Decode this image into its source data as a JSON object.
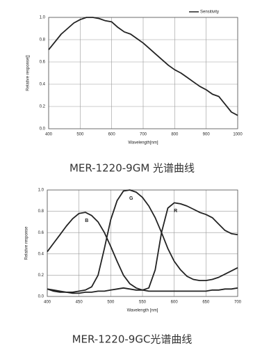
{
  "chart_data": [
    {
      "type": "line",
      "caption": "MER-1220-9GM 光谱曲线",
      "x_label": "Wavelength[nm]",
      "y_label": "Relative response[]",
      "x": [
        400,
        420,
        440,
        460,
        480,
        500,
        520,
        540,
        560,
        580,
        600,
        620,
        640,
        660,
        680,
        700,
        720,
        740,
        760,
        780,
        800,
        820,
        840,
        860,
        880,
        900,
        920,
        940,
        960,
        980,
        1000
      ],
      "series": [
        {
          "name": "Sensitivity",
          "color": "#222222",
          "values": [
            0.71,
            0.78,
            0.85,
            0.9,
            0.95,
            0.98,
            1.0,
            1.0,
            0.99,
            0.97,
            0.96,
            0.91,
            0.87,
            0.85,
            0.81,
            0.77,
            0.72,
            0.67,
            0.62,
            0.57,
            0.53,
            0.5,
            0.46,
            0.42,
            0.38,
            0.35,
            0.31,
            0.29,
            0.22,
            0.15,
            0.12
          ]
        }
      ],
      "xlim": [
        400,
        1000
      ],
      "xticks": [
        400,
        500,
        600,
        700,
        800,
        900,
        1000
      ],
      "ylim": [
        0,
        1
      ],
      "yticks": [
        {
          "value": 0,
          "label": "0.0"
        },
        0.2,
        0.4,
        0.6,
        0.8,
        {
          "value": 1,
          "label": "1.0"
        }
      ],
      "grid": true,
      "legend": "upper right"
    },
    {
      "type": "line",
      "caption": "MER-1220-9GC光谱曲线",
      "x_label": "Wavelength [nm]",
      "y_label": "Relative response",
      "x": [
        400,
        410,
        420,
        430,
        440,
        450,
        460,
        470,
        480,
        490,
        500,
        510,
        520,
        530,
        540,
        550,
        560,
        570,
        580,
        590,
        600,
        610,
        620,
        630,
        640,
        650,
        660,
        670,
        680,
        690,
        700
      ],
      "series": [
        {
          "name": "B",
          "color": "#222222",
          "values": [
            0.42,
            0.5,
            0.58,
            0.66,
            0.73,
            0.78,
            0.79,
            0.76,
            0.7,
            0.6,
            0.47,
            0.33,
            0.2,
            0.12,
            0.08,
            0.06,
            0.05,
            0.05,
            0.05,
            0.05,
            0.05,
            0.05,
            0.05,
            0.05,
            0.05,
            0.05,
            0.06,
            0.06,
            0.07,
            0.07,
            0.08
          ]
        },
        {
          "name": "G",
          "color": "#222222",
          "values": [
            0.07,
            0.05,
            0.04,
            0.04,
            0.04,
            0.05,
            0.06,
            0.09,
            0.2,
            0.45,
            0.72,
            0.9,
            0.99,
            1.0,
            0.98,
            0.93,
            0.85,
            0.74,
            0.6,
            0.45,
            0.33,
            0.25,
            0.19,
            0.16,
            0.15,
            0.15,
            0.16,
            0.18,
            0.21,
            0.24,
            0.27
          ]
        },
        {
          "name": "R",
          "color": "#222222",
          "values": [
            0.07,
            0.06,
            0.05,
            0.04,
            0.03,
            0.03,
            0.04,
            0.04,
            0.05,
            0.05,
            0.06,
            0.07,
            0.08,
            0.07,
            0.06,
            0.06,
            0.08,
            0.25,
            0.6,
            0.83,
            0.88,
            0.87,
            0.85,
            0.82,
            0.79,
            0.77,
            0.74,
            0.68,
            0.62,
            0.59,
            0.58
          ]
        }
      ],
      "xlim": [
        400,
        700
      ],
      "xticks": [
        400,
        450,
        500,
        550,
        600,
        650,
        700
      ],
      "ylim": [
        0,
        1
      ],
      "yticks": [
        {
          "value": 0,
          "label": "0.0"
        },
        0.2,
        0.4,
        0.6,
        0.8,
        {
          "value": 1,
          "label": "1.0"
        }
      ],
      "grid": true,
      "legend": "inline"
    }
  ]
}
